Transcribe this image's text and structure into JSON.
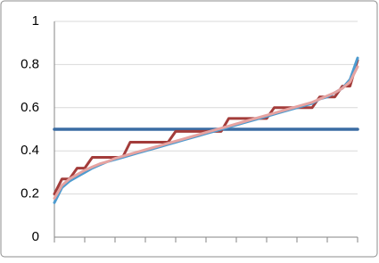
{
  "chart_data": {
    "type": "line",
    "categories": [
      null,
      null,
      null,
      null,
      null,
      null,
      null,
      null,
      null,
      null,
      null,
      null,
      null,
      null,
      null,
      null,
      null,
      null,
      null,
      null,
      null,
      null,
      null,
      null,
      null,
      null,
      null,
      null,
      null,
      null,
      null,
      null,
      null,
      null,
      null,
      null,
      null,
      null,
      null,
      null,
      null
    ],
    "ylim": [
      0,
      1
    ],
    "yticks": [
      0,
      0.2,
      0.4,
      0.6,
      0.8,
      1
    ],
    "grid": true,
    "series": [
      {
        "color": "#3a6ca3",
        "width": 3.5,
        "values": [
          0.5,
          0.5,
          0.5,
          0.5,
          0.5,
          0.5,
          0.5,
          0.5,
          0.5,
          0.5,
          0.5,
          0.5,
          0.5,
          0.5,
          0.5,
          0.5,
          0.5,
          0.5,
          0.5,
          0.5,
          0.5,
          0.5,
          0.5,
          0.5,
          0.5,
          0.5,
          0.5,
          0.5,
          0.5,
          0.5,
          0.5,
          0.5,
          0.5,
          0.5,
          0.5,
          0.5,
          0.5,
          0.5,
          0.5,
          0.5,
          0.5
        ]
      },
      {
        "color": "#a33c3a",
        "width": 3,
        "values": [
          0.2,
          0.27,
          0.27,
          0.32,
          0.32,
          0.37,
          0.37,
          0.37,
          0.37,
          0.37,
          0.44,
          0.44,
          0.44,
          0.44,
          0.44,
          0.44,
          0.49,
          0.49,
          0.49,
          0.49,
          0.49,
          0.49,
          0.49,
          0.55,
          0.55,
          0.55,
          0.55,
          0.55,
          0.55,
          0.6,
          0.6,
          0.6,
          0.6,
          0.6,
          0.6,
          0.65,
          0.65,
          0.65,
          0.7,
          0.7,
          0.82
        ]
      },
      {
        "color": "#4d9bcf",
        "width": 3,
        "values": [
          0.16,
          0.23,
          0.26,
          0.28,
          0.3,
          0.32,
          0.335,
          0.35,
          0.36,
          0.37,
          0.38,
          0.39,
          0.4,
          0.41,
          0.42,
          0.43,
          0.44,
          0.45,
          0.46,
          0.47,
          0.48,
          0.49,
          0.5,
          0.51,
          0.52,
          0.53,
          0.54,
          0.55,
          0.56,
          0.57,
          0.58,
          0.59,
          0.6,
          0.61,
          0.62,
          0.64,
          0.65,
          0.67,
          0.69,
          0.73,
          0.83
        ]
      },
      {
        "color": "#e6a3a1",
        "width": 3,
        "values": [
          0.18,
          0.24,
          0.27,
          0.29,
          0.31,
          0.325,
          0.34,
          0.35,
          0.365,
          0.375,
          0.385,
          0.395,
          0.405,
          0.415,
          0.425,
          0.435,
          0.445,
          0.455,
          0.465,
          0.475,
          0.485,
          0.495,
          0.505,
          0.515,
          0.525,
          0.535,
          0.545,
          0.555,
          0.565,
          0.575,
          0.585,
          0.595,
          0.605,
          0.615,
          0.625,
          0.64,
          0.655,
          0.67,
          0.69,
          0.72,
          0.79
        ]
      }
    ]
  }
}
